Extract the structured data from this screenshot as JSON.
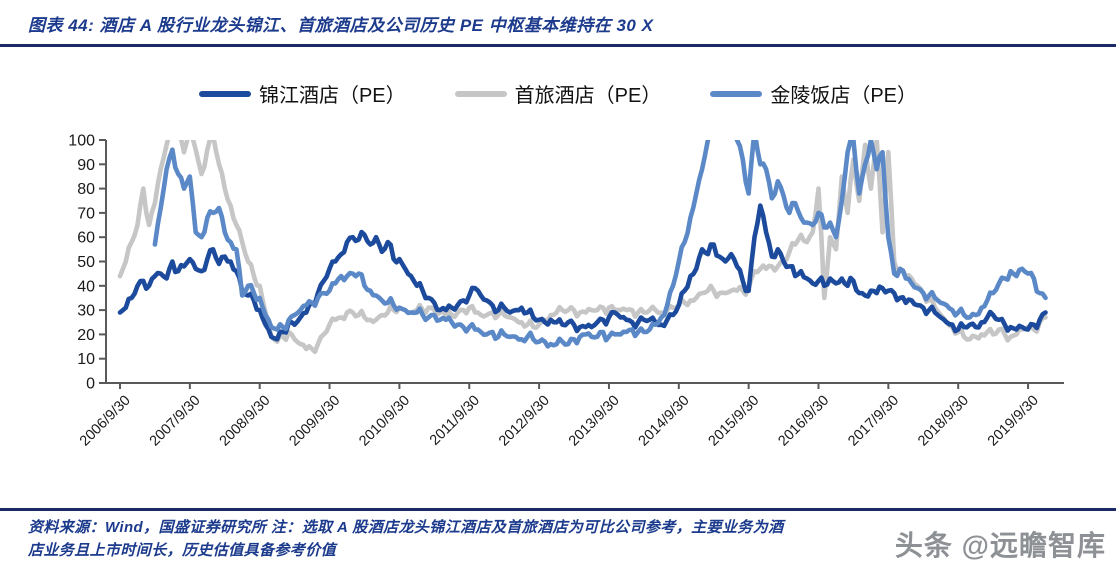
{
  "header": {
    "title": "图表 44:  酒店 A 股行业龙头锦江、首旅酒店及公司历史 PE 中枢基本维持在 30 X"
  },
  "footer": {
    "source_line1": "资料来源：Wind，国盛证券研究所  注：选取 A 股酒店龙头锦江酒店及首旅酒店为可比公司参考，主要业务为酒",
    "source_line2": "店业务且上市时间长，历史估值具备参考价值",
    "watermark": "头条 @远瞻智库"
  },
  "colors": {
    "accent_navy": "#1d3b8d",
    "divider_navy": "#1b2a66",
    "axis_gray": "#595959",
    "tick_label_black": "#1a1a1a",
    "watermark_gray": "#8d9094"
  },
  "chart_data": {
    "type": "line",
    "title": "",
    "xlabel": "",
    "ylabel": "",
    "grid": false,
    "legend_position": "top-center",
    "ylim": [
      0,
      100
    ],
    "y_ticks": [
      0,
      10,
      20,
      30,
      40,
      50,
      60,
      70,
      80,
      90,
      100
    ],
    "x_start": "2006-09",
    "x_step_months": 1,
    "x_tick_labels": [
      "2006/9/30",
      "2007/9/30",
      "2008/9/30",
      "2009/9/30",
      "2010/9/30",
      "2011/9/30",
      "2012/9/30",
      "2013/9/30",
      "2014/9/30",
      "2015/9/30",
      "2016/9/30",
      "2017/9/30",
      "2018/9/30",
      "2019/9/30"
    ],
    "series": [
      {
        "name": "锦江酒店（PE）",
        "color": "#1c4a9c",
        "values": [
          29,
          31,
          35,
          40,
          42,
          40,
          44,
          45,
          43,
          50,
          46,
          48,
          51,
          47,
          46,
          51,
          55,
          49,
          52,
          50,
          46,
          38,
          36,
          34,
          30,
          24,
          19,
          18,
          21,
          25,
          24,
          27,
          29,
          33,
          37,
          42,
          47,
          50,
          53,
          58,
          60,
          59,
          61,
          57,
          60,
          54,
          58,
          51,
          51,
          47,
          44,
          40,
          38,
          35,
          33,
          30,
          30,
          31,
          32,
          34,
          36,
          39,
          36,
          34,
          32,
          30,
          31,
          29,
          30,
          31,
          29,
          27,
          26,
          25,
          26,
          25,
          24,
          25,
          24,
          23,
          23,
          23,
          25,
          26,
          27,
          29,
          27,
          26,
          25,
          25,
          26,
          26,
          25,
          24,
          26,
          28,
          32,
          38,
          44,
          47,
          55,
          53,
          57,
          52,
          50,
          53,
          48,
          42,
          38,
          60,
          73,
          62,
          52,
          55,
          50,
          48,
          44,
          46,
          43,
          41,
          42,
          40,
          43,
          41,
          43,
          40,
          42,
          37,
          36,
          38,
          37,
          39,
          38,
          37,
          35,
          33,
          34,
          32,
          31,
          30,
          29,
          27,
          25,
          24,
          22,
          23,
          24,
          23,
          25,
          27,
          28,
          26,
          24,
          23,
          22,
          23,
          22,
          24,
          26,
          29
        ]
      },
      {
        "name": "首旅酒店（PE）",
        "color": "#c6c6c6",
        "values": [
          44,
          50,
          58,
          65,
          80,
          65,
          74,
          88,
          98,
          106,
          103,
          95,
          104,
          96,
          86,
          96,
          102,
          90,
          80,
          73,
          65,
          58,
          50,
          44,
          40,
          29,
          19,
          17,
          19,
          21,
          18,
          16,
          14,
          14,
          16,
          20,
          24,
          26,
          27,
          29,
          29,
          28,
          27,
          26,
          26,
          28,
          29,
          30,
          31,
          30,
          29,
          30,
          30,
          31,
          30,
          29,
          28,
          28,
          29,
          30,
          31,
          29,
          28,
          28,
          29,
          28,
          28,
          27,
          26,
          25,
          24,
          23,
          24,
          26,
          28,
          29,
          30,
          30,
          30,
          29,
          29,
          30,
          30,
          31,
          31,
          30,
          30,
          30,
          30,
          29,
          29,
          30,
          30,
          29,
          30,
          31,
          32,
          33,
          34,
          35,
          37,
          38,
          38,
          37,
          37,
          38,
          38,
          38,
          39,
          46,
          47,
          47,
          48,
          48,
          50,
          54,
          57,
          61,
          58,
          62,
          80,
          35,
          60,
          55,
          85,
          70,
          92,
          75,
          98,
          80,
          100,
          62,
          95,
          50,
          46,
          44,
          43,
          40,
          37,
          34,
          31,
          28,
          25,
          23,
          21,
          19,
          18,
          19,
          20,
          21,
          20,
          22,
          20,
          19,
          20,
          22,
          23,
          22,
          25,
          27
        ]
      },
      {
        "name": "金陵饭店（PE）",
        "color": "#5b89c7",
        "values": [
          null,
          null,
          null,
          null,
          null,
          null,
          57,
          72,
          88,
          96,
          86,
          80,
          85,
          62,
          60,
          68,
          70,
          72,
          62,
          58,
          55,
          36,
          40,
          37,
          35,
          28,
          23,
          22,
          23,
          26,
          28,
          30,
          32,
          33,
          35,
          37,
          38,
          41,
          44,
          44,
          45,
          45,
          40,
          38,
          36,
          34,
          33,
          32,
          31,
          30,
          29,
          29,
          28,
          27,
          28,
          26,
          26,
          25,
          24,
          23,
          23,
          22,
          21,
          20,
          21,
          19,
          20,
          19,
          19,
          18,
          19,
          18,
          17,
          17,
          16,
          16,
          17,
          16,
          18,
          19,
          20,
          19,
          19,
          21,
          19,
          20,
          20,
          21,
          22,
          21,
          21,
          22,
          24,
          27,
          32,
          40,
          50,
          58,
          68,
          78,
          88,
          100,
          106,
          109,
          110,
          108,
          100,
          92,
          78,
          104,
          90,
          88,
          76,
          83,
          77,
          70,
          74,
          68,
          66,
          65,
          70,
          64,
          66,
          60,
          75,
          95,
          100,
          78,
          90,
          100,
          88,
          95,
          60,
          45,
          47,
          43,
          41,
          39,
          37,
          36,
          35,
          33,
          32,
          30,
          29,
          28,
          27,
          28,
          31,
          34,
          37,
          41,
          43,
          46,
          44,
          47,
          45,
          43,
          37,
          35
        ]
      }
    ]
  }
}
